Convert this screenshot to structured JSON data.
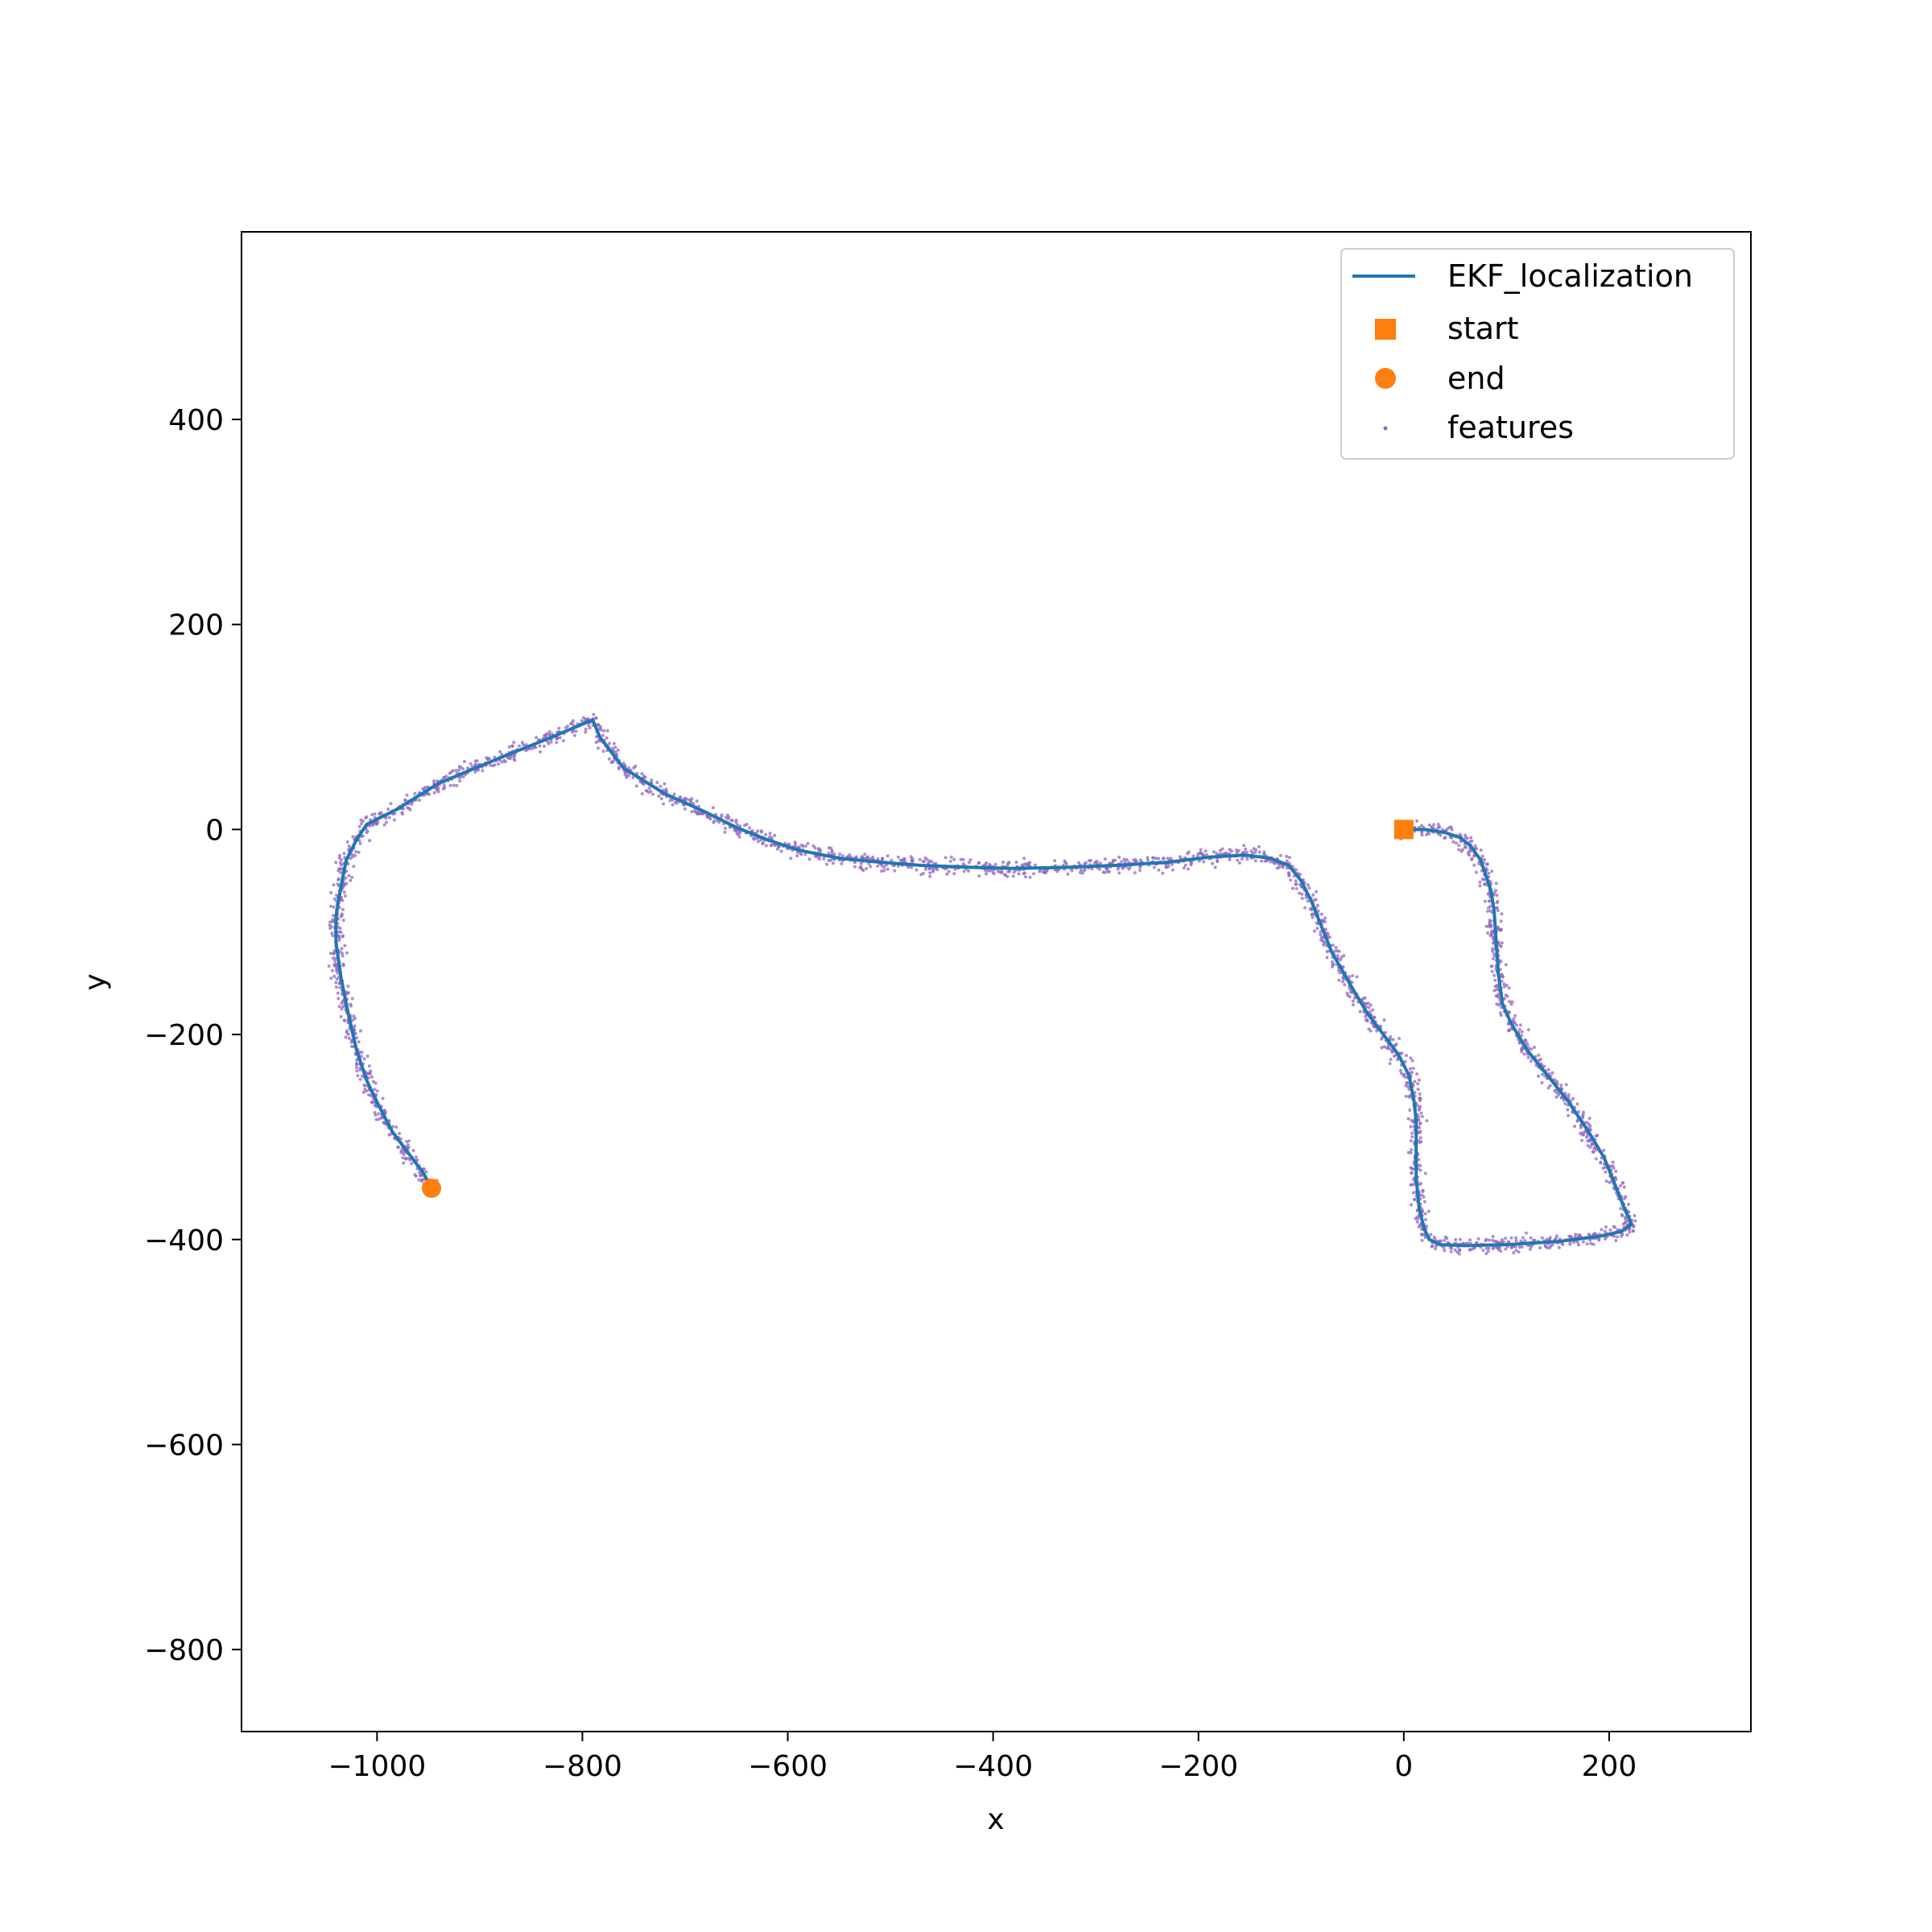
{
  "chart_data": {
    "type": "line",
    "title": "",
    "xlabel": "x",
    "ylabel": "y",
    "xlim": [
      -1132,
      338
    ],
    "ylim": [
      -880,
      583
    ],
    "xticks": [
      -1000,
      -800,
      -600,
      -400,
      -200,
      0,
      200
    ],
    "yticks": [
      400,
      200,
      0,
      -200,
      -400,
      -600,
      -800
    ],
    "xtick_labels": [
      "−1000",
      "−800",
      "−600",
      "−400",
      "−200",
      "0",
      "200"
    ],
    "ytick_labels": [
      "400",
      "200",
      "0",
      "−200",
      "−400",
      "−600",
      "−800"
    ],
    "grid": false,
    "legend_position": "top-right",
    "colors": {
      "trajectory": "#1f77b4",
      "markers": "#ff7f0e",
      "features": "#9467bd"
    },
    "series": [
      {
        "name": "EKF_localization",
        "kind": "line",
        "x": [
          0,
          20,
          40,
          55,
          65,
          75,
          80,
          85,
          88,
          90,
          92,
          96,
          105,
          120,
          140,
          160,
          180,
          195,
          205,
          215,
          222,
          212,
          190,
          150,
          100,
          60,
          35,
          25,
          20,
          15,
          12,
          12,
          12,
          10,
          5,
          -5,
          -20,
          -35,
          -50,
          -70,
          -80,
          -90,
          -100,
          -112,
          -130,
          -155,
          -190,
          -230,
          -280,
          -330,
          -380,
          -420,
          -470,
          -510,
          -550,
          -590,
          -620,
          -650,
          -680,
          -720,
          -760,
          -783,
          -790,
          -830,
          -880,
          -940,
          -980,
          -1010,
          -1020,
          -1030,
          -1035,
          -1040,
          -1040,
          -1035,
          -1028,
          -1020,
          -1010,
          -998,
          -985,
          -970,
          -955,
          -947
        ],
        "y": [
          0,
          0,
          -3,
          -8,
          -16,
          -30,
          -45,
          -60,
          -80,
          -110,
          -140,
          -170,
          -190,
          -215,
          -240,
          -265,
          -295,
          -320,
          -345,
          -370,
          -385,
          -392,
          -397,
          -402,
          -405,
          -406,
          -405,
          -400,
          -390,
          -370,
          -340,
          -310,
          -285,
          -265,
          -240,
          -220,
          -200,
          -180,
          -155,
          -120,
          -95,
          -70,
          -50,
          -35,
          -28,
          -25,
          -27,
          -32,
          -35,
          -37,
          -38,
          -37,
          -35,
          -32,
          -28,
          -20,
          -10,
          2,
          17,
          35,
          60,
          90,
          107,
          90,
          70,
          45,
          20,
          5,
          -10,
          -30,
          -55,
          -85,
          -110,
          -145,
          -180,
          -215,
          -245,
          -270,
          -295,
          -315,
          -335,
          -350
        ]
      },
      {
        "name": "start",
        "kind": "marker",
        "shape": "square",
        "x": [
          0
        ],
        "y": [
          0
        ]
      },
      {
        "name": "end",
        "kind": "marker",
        "shape": "circle",
        "x": [
          -947
        ],
        "y": [
          -350
        ]
      },
      {
        "name": "features",
        "kind": "scatter",
        "note_seed": 42
      }
    ]
  }
}
